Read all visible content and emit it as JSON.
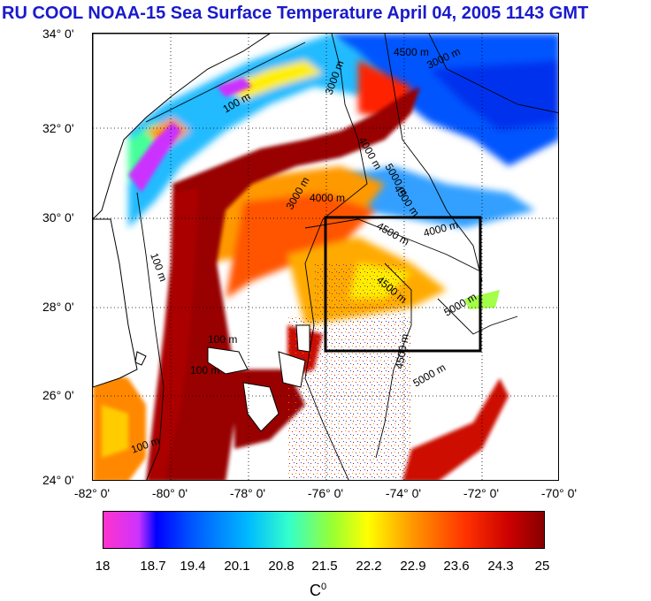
{
  "title": "RU COOL  NOAA-15 Sea Surface Temperature April 04, 2005 1143 GMT",
  "lat_labels": [
    "34° 0'",
    "32° 0'",
    "30° 0'",
    "28° 0'",
    "26° 0'",
    "24° 0'"
  ],
  "lon_labels": [
    "-82° 0'",
    "-80° 0'",
    "-78° 0'",
    "-76° 0'",
    "-74° 0'",
    "-72° 0'",
    "-70° 0'"
  ],
  "colorbar": {
    "labels": [
      "18",
      "18.7",
      "19.4",
      "20.1",
      "20.8",
      "21.5",
      "22.2",
      "22.9",
      "23.6",
      "24.3",
      "25"
    ],
    "units": "C",
    "units_sup": "0"
  },
  "contour_labels": [
    "100 m",
    "3000 m",
    "4000 m",
    "4500 m",
    "5000 m"
  ],
  "colors": {
    "title": "#1a1acc",
    "land": "#ffffff",
    "gulf_stream": "#990000",
    "shelf": "#00ccff",
    "offshore": "#0066ff"
  },
  "study_box": {
    "lon_range": [
      -76,
      -72
    ],
    "lat_range": [
      27,
      30
    ]
  }
}
